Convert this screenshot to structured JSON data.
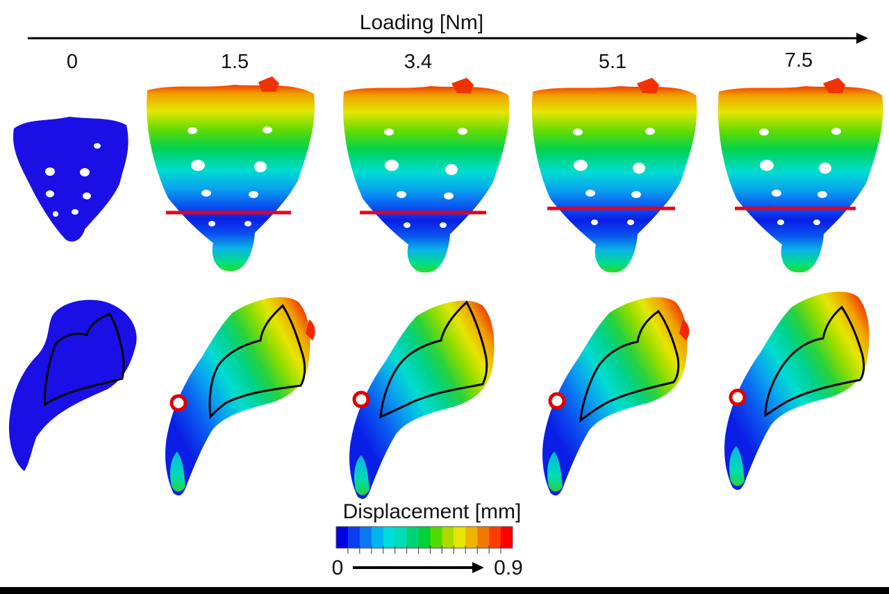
{
  "axis": {
    "title": "Loading [Nm]"
  },
  "loads": [
    "0",
    "1.5",
    "3.4",
    "5.1",
    "7.5"
  ],
  "legend": {
    "title": "Displacement [mm]",
    "min": "0",
    "max": "0.9",
    "colors": [
      "#0000e6",
      "#0a3cf0",
      "#0a78f0",
      "#00b4f0",
      "#00dcdc",
      "#00dcb4",
      "#00d278",
      "#00d23c",
      "#50dc00",
      "#aadc00",
      "#e6e600",
      "#f0b400",
      "#f07800",
      "#ff3c00",
      "#ff0000"
    ]
  },
  "colors": {
    "unloaded": "#1a10e6",
    "section_line": "#e8001c",
    "outline": "#000000",
    "marker_ring": "#e00000"
  }
}
